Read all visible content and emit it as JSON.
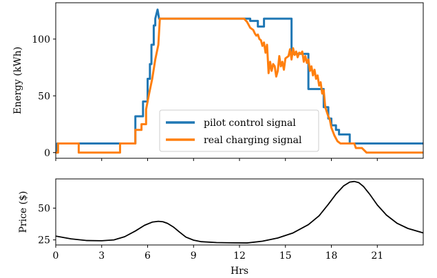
{
  "chart_data": [
    {
      "type": "line",
      "ylabel": "Energy (kWh)",
      "xlim": [
        0,
        24
      ],
      "ylim": [
        -5,
        132
      ],
      "yticks": [
        0,
        50,
        100
      ],
      "xticks": [
        0,
        3,
        6,
        9,
        12,
        15,
        18,
        21
      ],
      "x_ticklabels_shown": false,
      "grid": false,
      "legend": "bottom-center",
      "series": [
        {
          "name": "pilot control signal",
          "color": "#1f77b4",
          "x": [
            0,
            0.1,
            0.1,
            5.2,
            5.2,
            5.7,
            5.7,
            6.0,
            6.0,
            6.15,
            6.15,
            6.25,
            6.25,
            6.4,
            6.4,
            6.5,
            6.5,
            6.65,
            6.75,
            6.85,
            6.85,
            12.7,
            12.7,
            13.2,
            13.2,
            13.6,
            13.6,
            15.4,
            15.4,
            16.5,
            16.5,
            17.5,
            17.5,
            17.8,
            17.8,
            18.0,
            18.0,
            18.3,
            18.3,
            18.5,
            18.5,
            19.2,
            19.2,
            20.0,
            20.0,
            24
          ],
          "y": [
            0,
            0,
            8,
            8,
            32,
            32,
            45,
            45,
            65,
            65,
            78,
            78,
            95,
            95,
            112,
            112,
            118,
            126,
            118,
            118,
            118,
            118,
            116,
            116,
            111,
            111,
            118,
            118,
            87,
            87,
            56,
            56,
            40,
            40,
            30,
            30,
            24,
            24,
            20,
            20,
            16,
            16,
            8,
            8,
            8,
            8
          ]
        },
        {
          "name": "real charging signal",
          "color": "#ff7f0e",
          "x": [
            0,
            0.15,
            0.15,
            1.5,
            1.5,
            4.2,
            4.2,
            5.2,
            5.2,
            5.6,
            5.6,
            5.9,
            5.9,
            6.1,
            6.3,
            6.5,
            6.7,
            6.8,
            6.85,
            12.3,
            12.5,
            12.7,
            12.9,
            13.0,
            13.1,
            13.2,
            13.3,
            13.4,
            13.5,
            13.6,
            13.7,
            13.8,
            13.9,
            14.0,
            14.1,
            14.2,
            14.3,
            14.4,
            14.5,
            14.6,
            14.7,
            14.8,
            14.9,
            15.0,
            15.1,
            15.2,
            15.3,
            15.4,
            15.5,
            15.6,
            15.7,
            15.8,
            15.9,
            16.0,
            16.1,
            16.2,
            16.3,
            16.4,
            16.5,
            16.6,
            16.7,
            16.8,
            16.9,
            17.0,
            17.1,
            17.2,
            17.3,
            17.4,
            17.5,
            17.6,
            17.7,
            17.8,
            17.9,
            18.0,
            18.2,
            18.4,
            18.6,
            18.8,
            19.0,
            19.5,
            19.6,
            20.0,
            20.3,
            20.3,
            24
          ],
          "y": [
            0,
            0,
            8,
            8,
            0,
            0,
            8,
            8,
            20,
            20,
            25,
            25,
            38,
            52,
            65,
            82,
            95,
            118,
            118,
            118,
            115,
            110,
            108,
            105,
            103,
            104,
            100,
            99,
            94,
            97,
            88,
            95,
            70,
            80,
            72,
            78,
            76,
            67,
            72,
            85,
            76,
            80,
            73,
            83,
            84,
            85,
            91,
            82,
            92,
            86,
            89,
            84,
            88,
            87,
            89,
            80,
            85,
            79,
            82,
            72,
            76,
            68,
            73,
            65,
            68,
            59,
            62,
            52,
            55,
            40,
            36,
            32,
            29,
            22,
            15,
            10,
            8,
            8,
            8,
            8,
            4,
            4,
            0,
            0,
            0
          ]
        }
      ]
    },
    {
      "type": "line",
      "ylabel": "Price ($)",
      "xlabel": "Hrs",
      "xlim": [
        0,
        24
      ],
      "ylim": [
        21,
        73
      ],
      "yticks": [
        25,
        50
      ],
      "xticks": [
        0,
        3,
        6,
        9,
        12,
        15,
        18,
        21
      ],
      "grid": false,
      "series": [
        {
          "color": "#000000",
          "x": [
            0,
            1,
            2,
            3,
            3.8,
            4.5,
            5.2,
            5.8,
            6.3,
            6.7,
            7.0,
            7.3,
            7.7,
            8.1,
            8.5,
            9.0,
            9.5,
            10.5,
            11.5,
            12.5,
            13.5,
            14.5,
            15.5,
            16.5,
            17.2,
            17.8,
            18.3,
            18.8,
            19.2,
            19.5,
            19.8,
            20.1,
            20.5,
            21.0,
            21.6,
            22.3,
            23.0,
            24
          ],
          "y": [
            28,
            25.8,
            24.5,
            24.3,
            25,
            27.5,
            32,
            36.5,
            39,
            39.6,
            39.3,
            38,
            35,
            31,
            27.2,
            24.8,
            23.6,
            22.9,
            22.7,
            22.6,
            24,
            26.5,
            30.5,
            37,
            44,
            53,
            61,
            67.5,
            70.5,
            71,
            70,
            67,
            61,
            52.5,
            44.5,
            38,
            34,
            30.5
          ]
        }
      ]
    }
  ]
}
